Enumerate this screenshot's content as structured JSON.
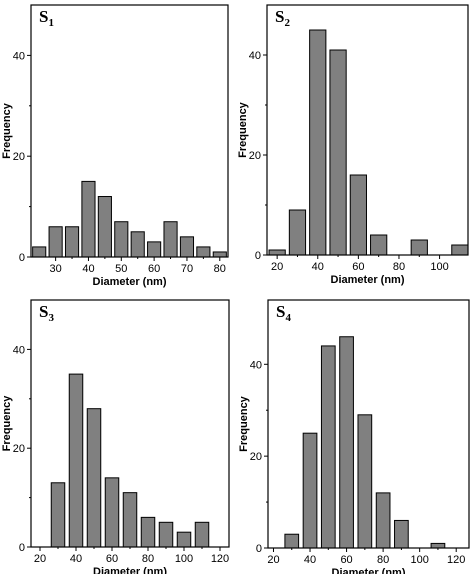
{
  "chart_data": [
    {
      "type": "bar",
      "title": "S",
      "subscript": "1",
      "xlabel": "Diameter (nm)",
      "ylabel": "Frequency",
      "x": [
        25,
        30,
        35,
        40,
        45,
        50,
        55,
        60,
        65,
        70,
        75,
        80
      ],
      "values": [
        2,
        6,
        6,
        15,
        12,
        7,
        5,
        3,
        7,
        4,
        2,
        1
      ],
      "xlim": [
        22.5,
        82.5
      ],
      "ylim": [
        0,
        50
      ],
      "xticks": [
        30,
        40,
        50,
        60,
        70,
        80
      ],
      "yticks": [
        0,
        20,
        40
      ],
      "bar_width": 4
    },
    {
      "type": "bar",
      "title": "S",
      "subscript": "2",
      "xlabel": "Diameter (nm)",
      "ylabel": "Frequency",
      "x": [
        20,
        30,
        40,
        50,
        60,
        70,
        80,
        90,
        100,
        110
      ],
      "values": [
        1,
        9,
        45,
        41,
        16,
        4,
        0,
        3,
        0,
        2
      ],
      "xlim": [
        15,
        114
      ],
      "ylim": [
        0,
        50
      ],
      "xticks": [
        20,
        40,
        60,
        80,
        100
      ],
      "yticks": [
        0,
        20,
        40
      ],
      "bar_width": 8
    },
    {
      "type": "bar",
      "title": "S",
      "subscript": "3",
      "xlabel": "Diameter (nm)",
      "ylabel": "Frequency",
      "x": [
        30,
        40,
        50,
        60,
        70,
        80,
        90,
        100,
        110
      ],
      "values": [
        13,
        35,
        28,
        14,
        11,
        6,
        5,
        3,
        5
      ],
      "xlim": [
        15,
        125
      ],
      "ylim": [
        0,
        50
      ],
      "xticks": [
        20,
        40,
        60,
        80,
        100,
        120
      ],
      "yticks": [
        0,
        20,
        40
      ],
      "bar_width": 7.5
    },
    {
      "type": "bar",
      "title": "S",
      "subscript": "4",
      "xlabel": "Diameter (nm)",
      "ylabel": "Frequency",
      "x": [
        30,
        40,
        50,
        60,
        70,
        80,
        90,
        100,
        110
      ],
      "values": [
        3,
        25,
        44,
        46,
        29,
        12,
        6,
        0,
        1
      ],
      "xlim": [
        17,
        127
      ],
      "ylim": [
        0,
        54
      ],
      "xticks": [
        20,
        40,
        60,
        80,
        100,
        120
      ],
      "yticks": [
        0,
        20,
        40
      ],
      "bar_width": 7.5
    }
  ]
}
